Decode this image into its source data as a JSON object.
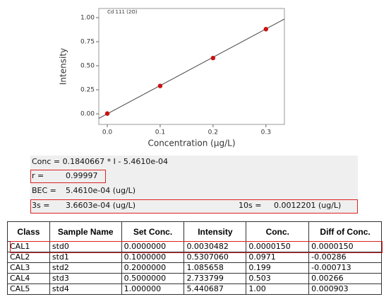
{
  "chart_data": {
    "type": "scatter",
    "title": "Cd 111 (2O)",
    "x_label": "Concentration (μg/L)",
    "y_label": "Intensity",
    "x": [
      0,
      0.1,
      0.2,
      0.3
    ],
    "values": [
      0.003,
      0.29,
      0.58,
      0.88
    ],
    "color": "#cc1111",
    "fit": {
      "x": [
        -0.016,
        0.335
      ],
      "values": [
        -0.047,
        0.985
      ],
      "color": "#444444"
    },
    "xlim": [
      -0.016,
      0.335
    ],
    "ylim": [
      -0.11,
      1.095
    ],
    "xticks": [
      {
        "value": 0,
        "label": "0.0"
      },
      0.1,
      0.2,
      0.3
    ],
    "yticks": [
      {
        "value": 0,
        "label": "0.00"
      },
      0.25,
      {
        "value": 0.5,
        "label": "0.50"
      },
      0.75,
      {
        "value": 1,
        "label": "1.00"
      }
    ]
  },
  "stats": {
    "equation": "Conc = 0.1840667 * I - 5.4610e-04",
    "r_label": "r =",
    "r_value": "0.99997",
    "bec_label": "BEC =",
    "bec_value": "5.4610e-04 (ug/L)",
    "s3_label": "3s =",
    "s3_value": "3.6603e-04 (ug/L)",
    "s10_label": "10s =",
    "s10_value": "0.0012201 (ug/L)"
  },
  "table": {
    "header": [
      "Class",
      "Sample Name",
      "Set Conc.",
      "Intensity",
      "Conc.",
      "Diff of Conc."
    ],
    "rows": [
      [
        "CAL1",
        "std0",
        "0.0000000",
        "0.0030482",
        "0.0000150",
        "0.0000150"
      ],
      [
        "CAL2",
        "std1",
        "0.1000000",
        "0.5307060",
        "0.0971",
        "-0.00286"
      ],
      [
        "CAL3",
        "std2",
        "0.2000000",
        "1.085658",
        "0.199",
        "-0.000713"
      ],
      [
        "CAL4",
        "std3",
        "0.5000000",
        "2.733799",
        "0.503",
        "0.00266"
      ],
      [
        "CAL5",
        "std4",
        "1.000000",
        "5.440687",
        "1.00",
        "0.000903"
      ]
    ]
  }
}
